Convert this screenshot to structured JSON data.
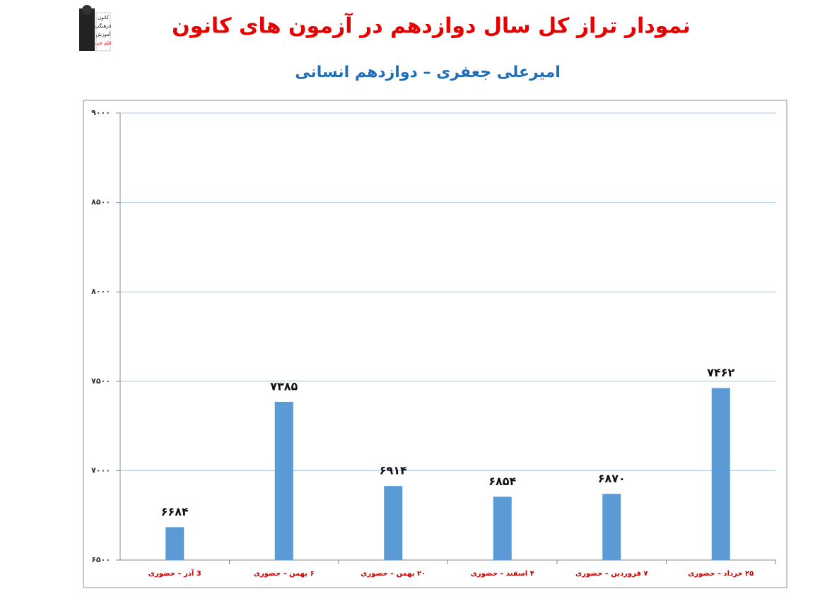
{
  "logo": {
    "lines": [
      "کانون",
      "فرهنگی",
      "آموزش",
      "قلم چی"
    ]
  },
  "chart_data": {
    "type": "bar",
    "title": "نمودار تراز کل سال دوازدهم در آزمون های کانون",
    "subtitle": "امیرعلی جعفری  –  دوازدهم انسانی",
    "categories": [
      "3 آذر – حضوری",
      "۶ بهمن – حضوری",
      "۲۰ بهمن – حضوری",
      "۴ اسفند – حضوری",
      "۷ فروردین – حضوری",
      "۲۵ خرداد – حضوری"
    ],
    "values": [
      6684,
      7385,
      6914,
      6854,
      6870,
      7462
    ],
    "value_labels": [
      "۶۶۸۴",
      "۷۳۸۵",
      "۶۹۱۴",
      "۶۸۵۴",
      "۶۸۷۰",
      "۷۴۶۲"
    ],
    "color": "#5b9bd5",
    "ylim": [
      6500,
      9000
    ],
    "yticks": [
      {
        "value": 6500,
        "label": "۶۵۰۰"
      },
      {
        "value": 7000,
        "label": "۷۰۰۰"
      },
      {
        "value": 7500,
        "label": "۷۵۰۰"
      },
      {
        "value": 8000,
        "label": "۸۰۰۰"
      },
      {
        "value": 8500,
        "label": "۸۵۰۰"
      },
      {
        "value": 9000,
        "label": "۹۰۰۰"
      }
    ],
    "grid": true
  }
}
